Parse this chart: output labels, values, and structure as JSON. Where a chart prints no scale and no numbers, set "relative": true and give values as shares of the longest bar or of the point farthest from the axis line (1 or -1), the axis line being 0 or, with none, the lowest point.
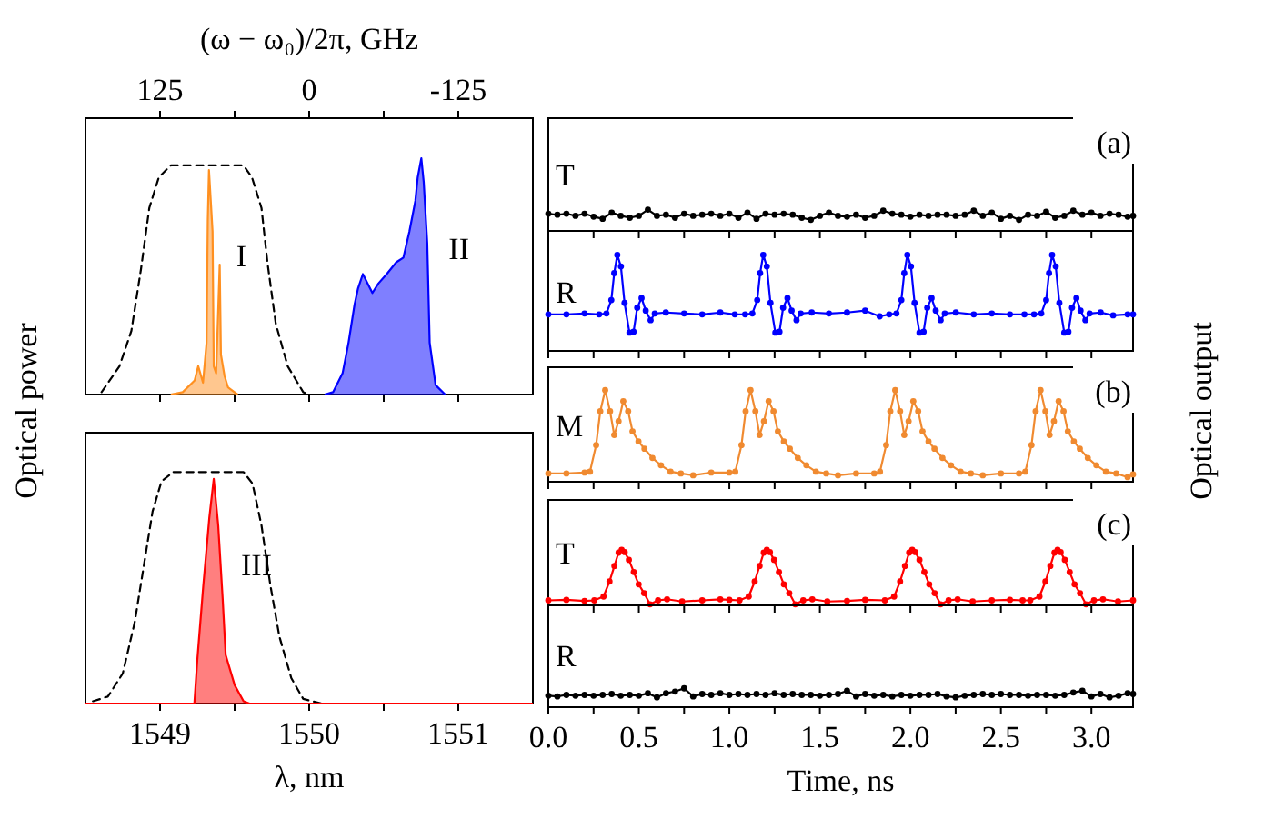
{
  "chart_data": [
    {
      "type": "area",
      "relative": true,
      "xlim": [
        187.5,
        -187.5
      ],
      "xticks": [
        125,
        {
          "value": 62.5,
          "label": null
        },
        0,
        {
          "value": -62.5,
          "label": null
        },
        -125
      ],
      "xlabel": "(ω − ω₀)/2π, GHz",
      "ylabel": "Optical power",
      "series": [
        {
          "type": "line",
          "line_style": "dashed",
          "color": "#000000",
          "x": [
            174,
            159,
            149,
            141,
            134,
            126,
            116,
            91,
            55,
            48,
            40,
            35,
            28,
            18,
            5,
            0
          ],
          "values": [
            0.01,
            0.12,
            0.27,
            0.53,
            0.79,
            0.92,
            0.97,
            0.97,
            0.97,
            0.92,
            0.79,
            0.56,
            0.3,
            0.12,
            0.01,
            0
          ]
        },
        {
          "name": "I",
          "color": "#ff9020",
          "x": [
            116,
            106,
            96,
            93,
            89,
            86,
            85,
            84,
            81,
            80,
            78,
            75,
            74,
            71,
            68,
            60
          ],
          "values": [
            0,
            0.01,
            0.06,
            0.12,
            0.05,
            0.22,
            0.74,
            0.95,
            0.69,
            0.12,
            0.09,
            0.55,
            0.17,
            0.08,
            0.03,
            0
          ]
        },
        {
          "name": "II",
          "color": "#0000ff",
          "x": [
            -13,
            -20,
            -28,
            -33,
            -38,
            -41,
            -45,
            -48,
            -53,
            -58,
            -65,
            -73,
            -79,
            -84,
            -89,
            -91,
            -94,
            -96,
            -99,
            -101,
            -106,
            -114
          ],
          "values": [
            0,
            0.01,
            0.09,
            0.22,
            0.38,
            0.45,
            0.51,
            0.48,
            0.43,
            0.47,
            0.51,
            0.56,
            0.58,
            0.69,
            0.82,
            0.92,
            1.0,
            0.9,
            0.64,
            0.22,
            0.04,
            0
          ]
        }
      ]
    },
    {
      "type": "area",
      "relative": true,
      "xlim": [
        1548.5,
        1551.5
      ],
      "xticks": [
        1549,
        {
          "value": 1549.5,
          "label": null
        },
        1550,
        {
          "value": 1550.5,
          "label": null
        },
        1551
      ],
      "xlabel": "λ, nm",
      "series": [
        {
          "type": "line",
          "line_style": "dashed",
          "color": "#000000",
          "x": [
            1548.55,
            1548.65,
            1548.75,
            1548.83,
            1548.89,
            1548.95,
            1549.01,
            1549.09,
            1549.56,
            1549.62,
            1549.68,
            1549.74,
            1549.8,
            1549.88,
            1549.96,
            1550.08
          ],
          "values": [
            0.01,
            0.03,
            0.13,
            0.35,
            0.59,
            0.83,
            0.96,
            1.0,
            1.0,
            0.95,
            0.77,
            0.51,
            0.29,
            0.11,
            0.02,
            0
          ]
        },
        {
          "name": "III",
          "color": "#ff0000",
          "x": [
            1548.5,
            1549.23,
            1549.25,
            1549.29,
            1549.33,
            1549.36,
            1549.39,
            1549.42,
            1549.44,
            1549.5,
            1549.56,
            1549.6,
            1551.5
          ],
          "values": [
            0,
            0,
            0.19,
            0.51,
            0.8,
            0.97,
            0.77,
            0.45,
            0.21,
            0.08,
            0.01,
            0,
            0
          ]
        }
      ]
    },
    {
      "type": "line",
      "relative": true,
      "title": "(a)",
      "marker": "circle",
      "tick_labels": false,
      "xlim": [
        0,
        3.23
      ],
      "xticks": [
        0,
        0.25,
        0.5,
        0.75,
        1,
        1.25,
        1.5,
        1.75,
        2,
        2.25,
        2.5,
        2.75,
        3
      ],
      "series": [
        {
          "name": "T",
          "color": "#000000",
          "x": [
            0,
            0.05,
            0.1,
            0.15,
            0.2,
            0.25,
            0.3,
            0.35,
            0.4,
            0.45,
            0.5,
            0.55,
            0.6,
            0.65,
            0.7,
            0.75,
            0.8,
            0.85,
            0.9,
            0.95,
            1.0,
            1.05,
            1.1,
            1.15,
            1.2,
            1.25,
            1.3,
            1.35,
            1.4,
            1.45,
            1.5,
            1.55,
            1.6,
            1.65,
            1.7,
            1.75,
            1.8,
            1.85,
            1.9,
            1.95,
            2.0,
            2.05,
            2.1,
            2.15,
            2.2,
            2.25,
            2.3,
            2.35,
            2.4,
            2.45,
            2.5,
            2.55,
            2.6,
            2.65,
            2.7,
            2.75,
            2.8,
            2.85,
            2.9,
            2.95,
            3.0,
            3.05,
            3.1,
            3.15,
            3.2,
            3.23
          ],
          "values": [
            0.81,
            0.76,
            0.81,
            0.71,
            0.81,
            0.67,
            0.57,
            0.86,
            0.71,
            0.62,
            0.71,
            1.0,
            0.71,
            0.76,
            0.62,
            0.81,
            0.71,
            0.76,
            0.81,
            0.71,
            0.81,
            0.62,
            0.86,
            0.57,
            0.81,
            0.76,
            0.81,
            0.76,
            0.62,
            0.52,
            0.71,
            0.86,
            0.71,
            0.67,
            0.76,
            0.62,
            0.71,
            0.95,
            0.81,
            0.76,
            0.67,
            0.76,
            0.71,
            0.76,
            0.76,
            0.71,
            0.76,
            0.95,
            0.71,
            0.86,
            0.57,
            0.71,
            0.52,
            0.76,
            0.71,
            0.9,
            0.62,
            0.71,
            0.95,
            0.76,
            0.86,
            0.71,
            0.81,
            0.76,
            0.67,
            0.71
          ]
        }
      ]
    },
    {
      "type": "line",
      "relative": true,
      "marker": "circle",
      "tick_labels": false,
      "xlim": [
        0,
        3.23
      ],
      "xticks": [
        0,
        0.25,
        0.5,
        0.75,
        1,
        1.25,
        1.5,
        1.75,
        2,
        2.25,
        2.5,
        2.75,
        3
      ],
      "series": [
        {
          "name": "R",
          "color": "#0000ff",
          "x": [
            0,
            0.1,
            0.2,
            0.281,
            0.321,
            0.348,
            0.364,
            0.381,
            0.401,
            0.421,
            0.448,
            0.471,
            0.491,
            0.515,
            0.538,
            0.565,
            0.588,
            0.649,
            0.75,
            0.85,
            0.95,
            1.03,
            1.087,
            1.127,
            1.154,
            1.17,
            1.187,
            1.207,
            1.227,
            1.254,
            1.277,
            1.297,
            1.321,
            1.344,
            1.371,
            1.394,
            1.455,
            1.55,
            1.65,
            1.75,
            1.83,
            1.883,
            1.923,
            1.95,
            1.966,
            1.983,
            2.003,
            2.023,
            2.05,
            2.073,
            2.093,
            2.117,
            2.14,
            2.167,
            2.19,
            2.251,
            2.35,
            2.45,
            2.55,
            2.63,
            2.683,
            2.723,
            2.75,
            2.766,
            2.783,
            2.803,
            2.823,
            2.85,
            2.873,
            2.893,
            2.917,
            2.94,
            2.967,
            2.99,
            3.051,
            3.12,
            3.2,
            3.23
          ],
          "values": [
            0.38,
            0.38,
            0.39,
            0.38,
            0.39,
            0.53,
            0.81,
            1.0,
            0.88,
            0.5,
            0.19,
            0.2,
            0.45,
            0.55,
            0.42,
            0.32,
            0.39,
            0.4,
            0.39,
            0.38,
            0.4,
            0.38,
            0.38,
            0.39,
            0.53,
            0.81,
            1.0,
            0.88,
            0.5,
            0.19,
            0.2,
            0.45,
            0.55,
            0.42,
            0.32,
            0.39,
            0.4,
            0.39,
            0.4,
            0.42,
            0.36,
            0.38,
            0.39,
            0.53,
            0.81,
            1.0,
            0.88,
            0.5,
            0.19,
            0.2,
            0.45,
            0.55,
            0.42,
            0.32,
            0.39,
            0.4,
            0.38,
            0.39,
            0.38,
            0.38,
            0.38,
            0.39,
            0.53,
            0.81,
            1.0,
            0.88,
            0.5,
            0.19,
            0.2,
            0.45,
            0.55,
            0.42,
            0.32,
            0.39,
            0.4,
            0.37,
            0.38,
            0.38
          ]
        }
      ]
    },
    {
      "type": "line",
      "relative": true,
      "title": "(b)",
      "ylabel": "Optical output",
      "marker": "circle",
      "tick_labels": false,
      "xlim": [
        0,
        3.23
      ],
      "xticks": [
        0,
        0.25,
        0.5,
        0.75,
        1,
        1.25,
        1.5,
        1.75,
        2,
        2.25,
        2.5,
        2.75,
        3
      ],
      "series": [
        {
          "name": "M",
          "color": "#f08a30",
          "x": [
            0,
            0.1,
            0.2,
            0.23,
            0.264,
            0.287,
            0.314,
            0.341,
            0.364,
            0.388,
            0.414,
            0.441,
            0.465,
            0.498,
            0.531,
            0.575,
            0.622,
            0.675,
            0.732,
            0.8,
            0.9,
            1.0,
            1.033,
            1.067,
            1.09,
            1.117,
            1.144,
            1.167,
            1.191,
            1.217,
            1.244,
            1.268,
            1.301,
            1.334,
            1.378,
            1.425,
            1.478,
            1.535,
            1.6,
            1.7,
            1.8,
            1.832,
            1.866,
            1.889,
            1.916,
            1.943,
            1.966,
            1.99,
            2.016,
            2.043,
            2.067,
            2.1,
            2.133,
            2.177,
            2.224,
            2.277,
            2.334,
            2.4,
            2.5,
            2.6,
            2.635,
            2.669,
            2.692,
            2.719,
            2.746,
            2.769,
            2.793,
            2.819,
            2.846,
            2.87,
            2.903,
            2.936,
            2.98,
            3.027,
            3.08,
            3.137,
            3.2,
            3.23
          ],
          "values": [
            0.09,
            0.09,
            0.1,
            0.11,
            0.4,
            0.77,
            1.0,
            0.77,
            0.51,
            0.66,
            0.88,
            0.77,
            0.55,
            0.44,
            0.36,
            0.26,
            0.18,
            0.11,
            0.09,
            0.07,
            0.1,
            0.1,
            0.11,
            0.4,
            0.77,
            1.0,
            0.77,
            0.51,
            0.66,
            0.88,
            0.77,
            0.55,
            0.44,
            0.36,
            0.26,
            0.18,
            0.11,
            0.09,
            0.07,
            0.09,
            0.09,
            0.11,
            0.4,
            0.77,
            1.0,
            0.77,
            0.51,
            0.66,
            0.88,
            0.77,
            0.55,
            0.44,
            0.36,
            0.26,
            0.18,
            0.11,
            0.09,
            0.07,
            0.09,
            0.09,
            0.11,
            0.4,
            0.77,
            1.0,
            0.77,
            0.51,
            0.66,
            0.88,
            0.77,
            0.55,
            0.44,
            0.36,
            0.26,
            0.18,
            0.11,
            0.09,
            0.05,
            0.08
          ]
        }
      ]
    },
    {
      "type": "line",
      "relative": true,
      "title": "(c)",
      "marker": "circle",
      "tick_labels": false,
      "xlim": [
        0,
        3.23
      ],
      "xticks": [
        0,
        0.25,
        0.5,
        0.75,
        1,
        1.25,
        1.5,
        1.75,
        2,
        2.25,
        2.5,
        2.75,
        3
      ],
      "series": [
        {
          "name": "T",
          "color": "#ff0000",
          "x": [
            0,
            0.1,
            0.2,
            0.254,
            0.305,
            0.338,
            0.365,
            0.388,
            0.405,
            0.422,
            0.445,
            0.472,
            0.499,
            0.529,
            0.562,
            0.606,
            0.656,
            0.739,
            0.85,
            0.95,
            1.0,
            1.056,
            1.107,
            1.14,
            1.167,
            1.19,
            1.207,
            1.224,
            1.247,
            1.274,
            1.301,
            1.331,
            1.364,
            1.408,
            1.458,
            1.541,
            1.65,
            1.75,
            1.859,
            1.91,
            1.943,
            1.97,
            1.993,
            2.01,
            2.027,
            2.05,
            2.077,
            2.104,
            2.134,
            2.167,
            2.211,
            2.261,
            2.344,
            2.45,
            2.55,
            2.62,
            2.662,
            2.713,
            2.746,
            2.773,
            2.796,
            2.813,
            2.83,
            2.853,
            2.88,
            2.907,
            2.937,
            2.97,
            3.014,
            3.064,
            3.147,
            3.23
          ],
          "values": [
            0.09,
            0.1,
            0.08,
            0.09,
            0.16,
            0.43,
            0.71,
            0.95,
            1.0,
            0.96,
            0.82,
            0.6,
            0.38,
            0.22,
            0.02,
            0.09,
            0.11,
            0.07,
            0.09,
            0.11,
            0.1,
            0.09,
            0.16,
            0.43,
            0.71,
            0.95,
            1.0,
            0.96,
            0.82,
            0.6,
            0.38,
            0.22,
            0.02,
            0.09,
            0.11,
            0.07,
            0.08,
            0.1,
            0.09,
            0.16,
            0.43,
            0.71,
            0.95,
            1.0,
            0.96,
            0.82,
            0.6,
            0.38,
            0.22,
            0.02,
            0.09,
            0.11,
            0.07,
            0.09,
            0.1,
            0.09,
            0.09,
            0.16,
            0.43,
            0.71,
            0.95,
            1.0,
            0.96,
            0.82,
            0.6,
            0.38,
            0.22,
            0.02,
            0.09,
            0.11,
            0.07,
            0.09
          ]
        }
      ]
    },
    {
      "type": "line",
      "relative": true,
      "xlabel": "Time, ns",
      "marker": "circle",
      "xlim": [
        0,
        3.23
      ],
      "xticks": [
        {
          "value": 0,
          "label": "0.0"
        },
        {
          "value": 0.25,
          "label": null
        },
        {
          "value": 0.5,
          "label": "0.5"
        },
        {
          "value": 0.75,
          "label": null
        },
        {
          "value": 1,
          "label": "1.0"
        },
        {
          "value": 1.25,
          "label": null
        },
        {
          "value": 1.5,
          "label": "1.5"
        },
        {
          "value": 1.75,
          "label": null
        },
        {
          "value": 2,
          "label": "2.0"
        },
        {
          "value": 2.25,
          "label": null
        },
        {
          "value": 2.5,
          "label": "2.5"
        },
        {
          "value": 2.75,
          "label": null
        },
        {
          "value": 3,
          "label": "3.0"
        }
      ],
      "series": [
        {
          "name": "R",
          "color": "#000000",
          "x": [
            0,
            0.05,
            0.1,
            0.15,
            0.2,
            0.25,
            0.3,
            0.35,
            0.4,
            0.45,
            0.5,
            0.55,
            0.6,
            0.65,
            0.7,
            0.75,
            0.8,
            0.85,
            0.9,
            0.95,
            1.0,
            1.05,
            1.1,
            1.15,
            1.2,
            1.25,
            1.3,
            1.35,
            1.4,
            1.45,
            1.5,
            1.55,
            1.6,
            1.65,
            1.7,
            1.75,
            1.8,
            1.85,
            1.9,
            1.95,
            2.0,
            2.05,
            2.1,
            2.15,
            2.2,
            2.25,
            2.3,
            2.35,
            2.4,
            2.45,
            2.5,
            2.55,
            2.6,
            2.65,
            2.7,
            2.75,
            2.8,
            2.85,
            2.9,
            2.95,
            3.0,
            3.05,
            3.1,
            3.15,
            3.2,
            3.23
          ],
          "values": [
            0.61,
            0.57,
            0.65,
            0.61,
            0.65,
            0.61,
            0.65,
            0.7,
            0.61,
            0.65,
            0.61,
            0.74,
            0.52,
            0.74,
            0.83,
            1.0,
            0.57,
            0.7,
            0.65,
            0.74,
            0.65,
            0.7,
            0.65,
            0.7,
            0.65,
            0.74,
            0.65,
            0.7,
            0.65,
            0.65,
            0.61,
            0.65,
            0.7,
            0.87,
            0.57,
            0.7,
            0.61,
            0.65,
            0.57,
            0.65,
            0.61,
            0.65,
            0.65,
            0.7,
            0.57,
            0.52,
            0.61,
            0.65,
            0.7,
            0.65,
            0.7,
            0.65,
            0.65,
            0.61,
            0.65,
            0.65,
            0.61,
            0.65,
            0.78,
            0.87,
            0.57,
            0.7,
            0.52,
            0.61,
            0.74,
            0.7
          ]
        }
      ]
    }
  ]
}
